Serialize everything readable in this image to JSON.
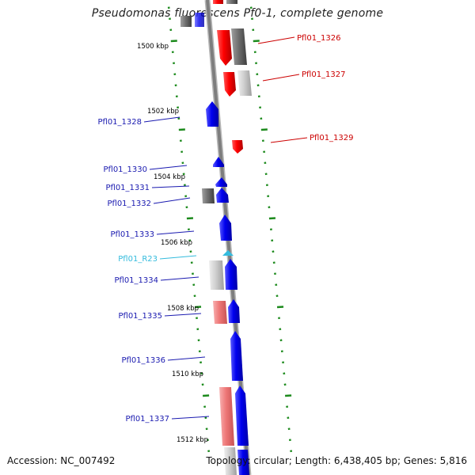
{
  "title": "Pseudomonas fluorescens Pf0-1, complete genome",
  "accession": "Accession: NC_007492",
  "summary": "Topology: circular; Length: 6,438,405 bp; Genes: 5,816",
  "colors": {
    "backbone": "#8a8a8a",
    "tick": "#1c8a1c",
    "scale_label": "#000000",
    "blue_label": "#1a1ab0",
    "red_label": "#cc0000",
    "cyan_label": "#33bbdd"
  },
  "scale_labels": [
    "1500 kbp",
    "1502 kbp",
    "1504 kbp",
    "1506 kbp",
    "1508 kbp",
    "1510 kbp",
    "1512 kbp"
  ],
  "gene_labels": [
    {
      "text": "Pfl01_1326",
      "color": "red"
    },
    {
      "text": "Pfl01_1327",
      "color": "red"
    },
    {
      "text": "Pfl01_1328",
      "color": "blue"
    },
    {
      "text": "Pfl01_1329",
      "color": "red"
    },
    {
      "text": "Pfl01_1330",
      "color": "blue"
    },
    {
      "text": "Pfl01_1331",
      "color": "blue"
    },
    {
      "text": "Pfl01_1332",
      "color": "blue"
    },
    {
      "text": "Pfl01_1333",
      "color": "blue"
    },
    {
      "text": "Pfl01_R23",
      "color": "cyan"
    },
    {
      "text": "Pfl01_1334",
      "color": "blue"
    },
    {
      "text": "Pfl01_1335",
      "color": "blue"
    },
    {
      "text": "Pfl01_1336",
      "color": "blue"
    },
    {
      "text": "Pfl01_1337",
      "color": "blue"
    }
  ]
}
